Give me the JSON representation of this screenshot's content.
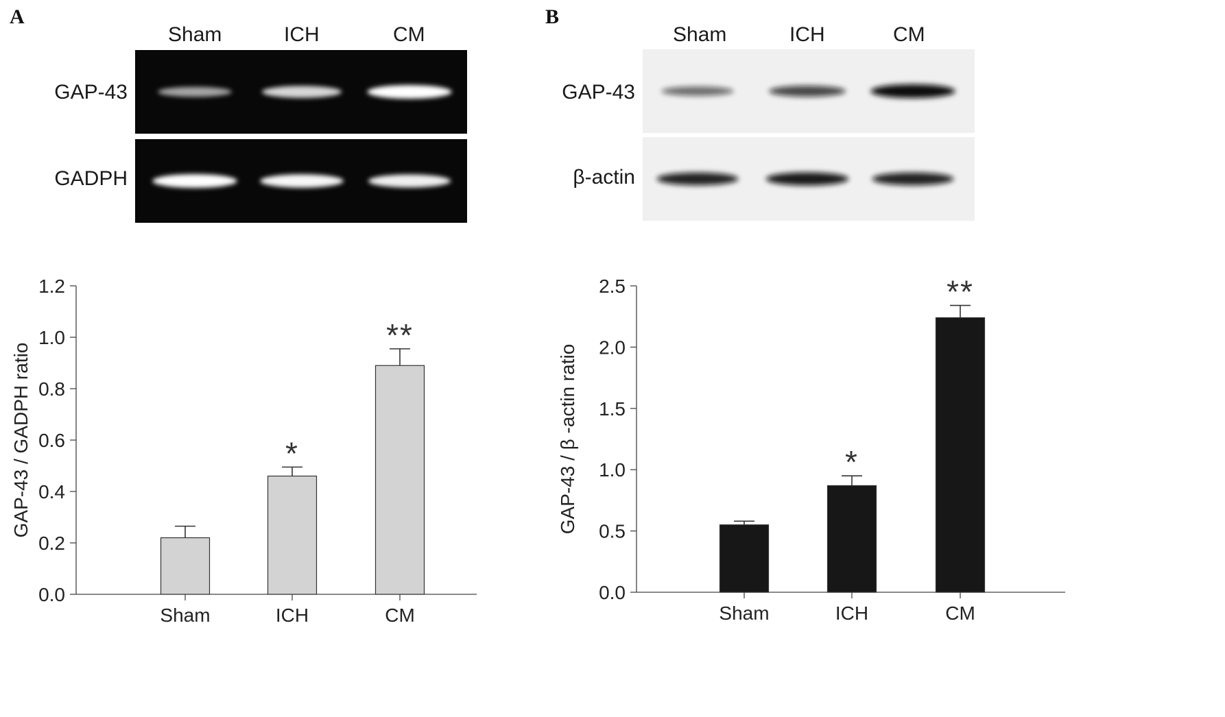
{
  "panel_a": {
    "letter": "A",
    "lanes": [
      "Sham",
      "ICH",
      "CM"
    ],
    "gel_rows": [
      {
        "label": "GAP-43",
        "intensity": [
          0.45,
          0.75,
          1.0
        ]
      },
      {
        "label": "GADPH",
        "intensity": [
          1.0,
          0.95,
          0.9
        ]
      }
    ],
    "gel_style": {
      "background": "#080808",
      "band": "#ffffff"
    }
  },
  "panel_b": {
    "letter": "B",
    "lanes": [
      "Sham",
      "ICH",
      "CM"
    ],
    "blot_rows": [
      {
        "label": "GAP-43",
        "intensity": [
          0.35,
          0.6,
          1.0
        ]
      },
      {
        "label": "β-actin",
        "intensity": [
          0.85,
          0.9,
          0.85
        ]
      }
    ],
    "blot_style": {
      "background": "#f0f0f0",
      "band": "#101010"
    }
  },
  "chart_data": [
    {
      "type": "bar",
      "categories": [
        "Sham",
        "ICH",
        "CM"
      ],
      "values": [
        0.22,
        0.46,
        0.89
      ],
      "errors": [
        0.045,
        0.035,
        0.065
      ],
      "significance": [
        "",
        "*",
        "**"
      ],
      "title": "",
      "xlabel": "",
      "ylabel": "GAP-43 / GADPH ratio",
      "ylim": [
        0,
        1.2
      ],
      "yticks": [
        "0.0",
        "0.2",
        "0.4",
        "0.6",
        "0.8",
        "1.0",
        "1.2"
      ],
      "grid": false,
      "bar_color": "#d3d3d3"
    },
    {
      "type": "bar",
      "categories": [
        "Sham",
        "ICH",
        "CM"
      ],
      "values": [
        0.55,
        0.87,
        2.24
      ],
      "errors": [
        0.03,
        0.08,
        0.1
      ],
      "significance": [
        "",
        "*",
        "**"
      ],
      "title": "",
      "xlabel": "",
      "ylabel": "GAP-43 / β -actin ratio",
      "ylim": [
        0,
        2.5
      ],
      "yticks": [
        "0.0",
        "0.5",
        "1.0",
        "1.5",
        "2.0",
        "2.5"
      ],
      "grid": false,
      "bar_color": "#171717"
    }
  ]
}
